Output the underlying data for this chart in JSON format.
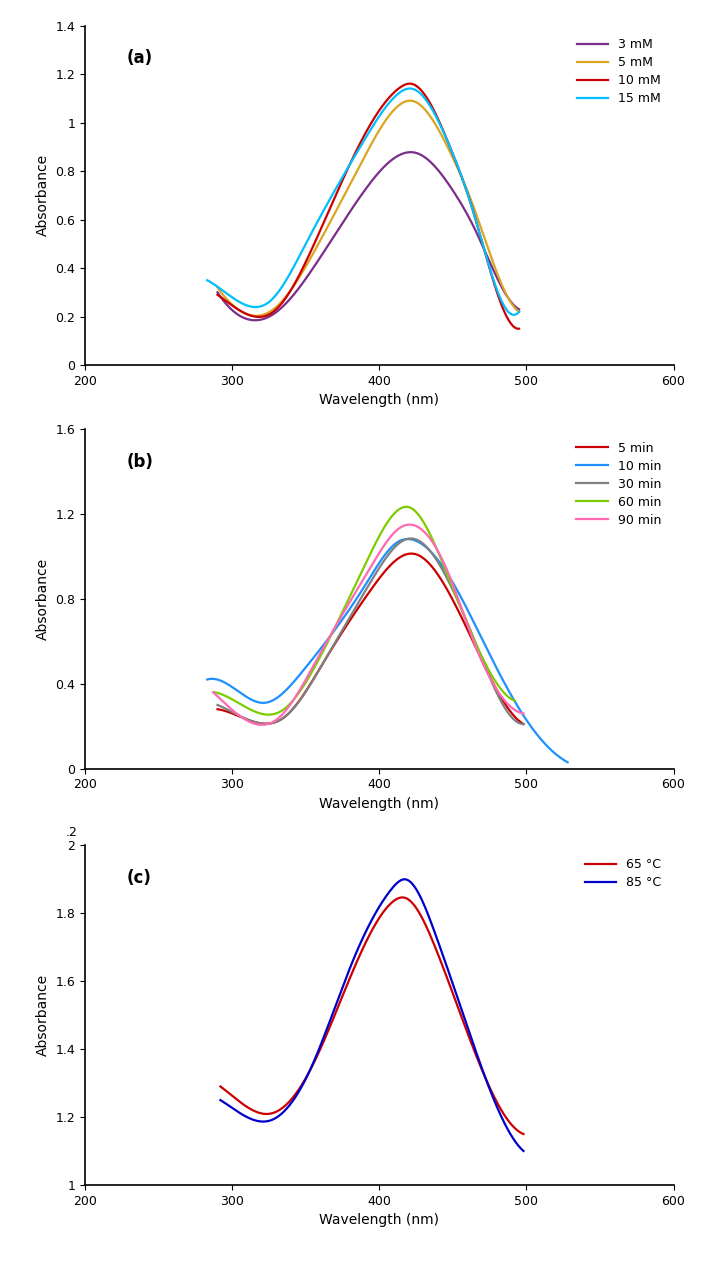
{
  "panel_a": {
    "title": "(a)",
    "xlabel": "Wavelength (nm)",
    "ylabel": "Absorbance",
    "xlim": [
      200,
      600
    ],
    "ylim": [
      0,
      1.4
    ],
    "yticks": [
      0,
      0.2,
      0.4,
      0.6,
      0.8,
      1.0,
      1.2,
      1.4
    ],
    "ytick_labels": [
      "0",
      "0.2",
      "0.4",
      "0.6",
      "0.8",
      "1",
      "1.2",
      "1.4"
    ],
    "xticks": [
      200,
      300,
      400,
      500,
      600
    ],
    "series": [
      {
        "label": "3 mM",
        "color": "#7B2D8B",
        "x": [
          290,
          310,
          328,
          355,
          390,
          415,
          425,
          450,
          465,
          480,
          495
        ],
        "y": [
          0.3,
          0.19,
          0.21,
          0.4,
          0.72,
          0.87,
          0.875,
          0.72,
          0.56,
          0.36,
          0.23
        ]
      },
      {
        "label": "5 mM",
        "color": "#DAA520",
        "x": [
          290,
          310,
          328,
          355,
          390,
          413,
          422,
          448,
          463,
          480,
          495
        ],
        "y": [
          0.32,
          0.21,
          0.23,
          0.46,
          0.86,
          1.07,
          1.09,
          0.88,
          0.67,
          0.38,
          0.22
        ]
      },
      {
        "label": "10 mM",
        "color": "#CC0000",
        "x": [
          290,
          310,
          328,
          355,
          390,
          413,
          422,
          448,
          463,
          480,
          495
        ],
        "y": [
          0.29,
          0.21,
          0.22,
          0.49,
          0.95,
          1.14,
          1.16,
          0.9,
          0.65,
          0.3,
          0.15
        ]
      },
      {
        "label": "15 mM",
        "color": "#00BFFF",
        "x": [
          283,
          305,
          325,
          350,
          390,
          413,
          422,
          448,
          463,
          480,
          495
        ],
        "y": [
          0.35,
          0.26,
          0.26,
          0.5,
          0.93,
          1.12,
          1.14,
          0.9,
          0.65,
          0.31,
          0.22
        ]
      }
    ]
  },
  "panel_b": {
    "title": "(b)",
    "xlabel": "Wavelength (nm)",
    "ylabel": "Absorbance",
    "xlim": [
      200,
      600
    ],
    "ylim": [
      0,
      1.6
    ],
    "yticks": [
      0,
      0.4,
      0.8,
      1.2,
      1.6
    ],
    "ytick_labels": [
      "0",
      "0.4",
      "0.8",
      "1.2",
      "1.6"
    ],
    "xticks": [
      200,
      300,
      400,
      500,
      600
    ],
    "series": [
      {
        "label": "5 min",
        "color": "#CC0000",
        "x": [
          290,
          315,
          335,
          362,
          395,
          415,
          425,
          448,
          465,
          485,
          498
        ],
        "y": [
          0.28,
          0.22,
          0.24,
          0.5,
          0.85,
          1.0,
          1.01,
          0.82,
          0.58,
          0.31,
          0.21
        ]
      },
      {
        "label": "10 min",
        "color": "#1E90FF",
        "x": [
          283,
          305,
          322,
          348,
          390,
          413,
          422,
          448,
          472,
          498,
          518,
          528
        ],
        "y": [
          0.42,
          0.36,
          0.31,
          0.46,
          0.86,
          1.07,
          1.08,
          0.9,
          0.58,
          0.25,
          0.08,
          0.03
        ]
      },
      {
        "label": "30 min",
        "color": "#808080",
        "x": [
          290,
          315,
          335,
          362,
          395,
          415,
          425,
          448,
          465,
          485,
          498
        ],
        "y": [
          0.3,
          0.22,
          0.24,
          0.5,
          0.89,
          1.07,
          1.08,
          0.87,
          0.6,
          0.29,
          0.21
        ]
      },
      {
        "label": "60 min",
        "color": "#7CCC00",
        "x": [
          288,
          315,
          333,
          360,
          393,
          413,
          421,
          443,
          460,
          480,
          492
        ],
        "y": [
          0.36,
          0.27,
          0.27,
          0.53,
          1.0,
          1.22,
          1.23,
          0.97,
          0.68,
          0.4,
          0.32
        ]
      },
      {
        "label": "90 min",
        "color": "#FF69B4",
        "x": [
          287,
          312,
          330,
          358,
          395,
          413,
          421,
          447,
          463,
          483,
          498
        ],
        "y": [
          0.36,
          0.22,
          0.23,
          0.52,
          0.96,
          1.13,
          1.15,
          0.92,
          0.62,
          0.34,
          0.26
        ]
      }
    ]
  },
  "panel_c": {
    "title": "(c)",
    "xlabel": "Wavelength (nm)",
    "ylabel": "Absorbance",
    "xlim": [
      200,
      600
    ],
    "ylim": [
      1.0,
      2.0
    ],
    "yticks": [
      1.0,
      1.2,
      1.4,
      1.6,
      1.8,
      2.0
    ],
    "ytick_labels": [
      "1",
      "1.2",
      "1.4",
      "1.6",
      "1.8",
      "2"
    ],
    "xticks": [
      200,
      300,
      400,
      500,
      600
    ],
    "series": [
      {
        "label": "65 °C",
        "color": "#CC0000",
        "x": [
          292,
          310,
          326,
          352,
          382,
          408,
          418,
          438,
          458,
          478,
          498
        ],
        "y": [
          1.29,
          1.23,
          1.21,
          1.33,
          1.63,
          1.83,
          1.845,
          1.7,
          1.47,
          1.26,
          1.15
        ]
      },
      {
        "label": "85 °C",
        "color": "#0000CC",
        "x": [
          292,
          310,
          326,
          352,
          382,
          408,
          418,
          438,
          458,
          478,
          498
        ],
        "y": [
          1.25,
          1.2,
          1.19,
          1.33,
          1.66,
          1.87,
          1.9,
          1.74,
          1.49,
          1.25,
          1.1
        ]
      }
    ]
  },
  "line_width": 1.6,
  "label_fontsize": 10,
  "tick_fontsize": 9,
  "legend_fontsize": 9,
  "panel_label_fontsize": 12
}
